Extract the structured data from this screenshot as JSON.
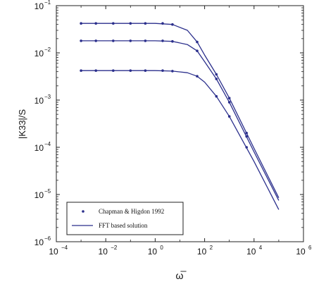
{
  "chart_data": {
    "type": "line",
    "xscale": "log",
    "yscale": "log",
    "xlim": [
      0.0001,
      1000000
    ],
    "ylim": [
      1e-06,
      0.1
    ],
    "xlabel": "ω̅",
    "ylabel": "|K33|/S",
    "xticks": [
      {
        "value": 0.0001,
        "base": "10",
        "exp": "−4"
      },
      {
        "value": 0.01,
        "base": "10",
        "exp": "−2"
      },
      {
        "value": 1,
        "base": "10",
        "exp": "0"
      },
      {
        "value": 100,
        "base": "10",
        "exp": "2"
      },
      {
        "value": 10000,
        "base": "10",
        "exp": "4"
      },
      {
        "value": 1000000,
        "base": "10",
        "exp": "6"
      }
    ],
    "yticks": [
      {
        "value": 1e-06,
        "base": "10",
        "exp": "−6"
      },
      {
        "value": 1e-05,
        "base": "10",
        "exp": "−5"
      },
      {
        "value": 0.0001,
        "base": "10",
        "exp": "−4"
      },
      {
        "value": 0.001,
        "base": "10",
        "exp": "−3"
      },
      {
        "value": 0.01,
        "base": "10",
        "exp": "−2"
      },
      {
        "value": 0.1,
        "base": "10",
        "exp": "−1"
      }
    ],
    "legend": {
      "position": "bottom-left",
      "entries": [
        {
          "label": "Chapman & Higdon 1992",
          "marker": "dot"
        },
        {
          "label": "FFT based solution",
          "marker": "line"
        }
      ]
    },
    "line_color": "#2b2f8c",
    "marker_color": "#2b2f8c",
    "series": [
      {
        "x": [
          0.001,
          0.01,
          0.1,
          1,
          5,
          20,
          50,
          100,
          300,
          1000,
          10000,
          100000
        ],
        "y": [
          0.042,
          0.042,
          0.042,
          0.042,
          0.04,
          0.03,
          0.017,
          0.009,
          0.0035,
          0.0011,
          9.5e-05,
          8.5e-06
        ]
      },
      {
        "x": [
          0.001,
          0.01,
          0.1,
          1,
          5,
          20,
          50,
          100,
          300,
          1000,
          10000,
          100000
        ],
        "y": [
          0.018,
          0.018,
          0.018,
          0.018,
          0.0175,
          0.015,
          0.011,
          0.0065,
          0.0028,
          0.0009,
          8e-05,
          7.5e-06
        ]
      },
      {
        "x": [
          0.001,
          0.01,
          0.1,
          1,
          5,
          20,
          50,
          100,
          300,
          1000,
          10000,
          100000
        ],
        "y": [
          0.0042,
          0.0042,
          0.0042,
          0.0042,
          0.0041,
          0.0038,
          0.0032,
          0.0024,
          0.0012,
          0.00045,
          5e-05,
          4.8e-06
        ]
      }
    ],
    "markers": [
      {
        "x": [
          0.001,
          0.004,
          0.02,
          0.1,
          0.4,
          2,
          5,
          50,
          300,
          1000,
          5000
        ],
        "y": [
          0.042,
          0.042,
          0.042,
          0.042,
          0.042,
          0.042,
          0.04,
          0.017,
          0.0035,
          0.0011,
          0.0002
        ]
      },
      {
        "x": [
          0.001,
          0.004,
          0.02,
          0.1,
          0.4,
          2,
          5,
          50,
          300,
          1000,
          5000
        ],
        "y": [
          0.018,
          0.018,
          0.018,
          0.018,
          0.018,
          0.018,
          0.0175,
          0.011,
          0.0028,
          0.0009,
          0.00017
        ]
      },
      {
        "x": [
          0.001,
          0.004,
          0.02,
          0.1,
          0.4,
          2,
          5,
          50,
          300,
          1000,
          5000
        ],
        "y": [
          0.0042,
          0.0042,
          0.0042,
          0.0042,
          0.0042,
          0.0042,
          0.0041,
          0.0032,
          0.0012,
          0.00045,
          0.0001
        ]
      }
    ]
  }
}
